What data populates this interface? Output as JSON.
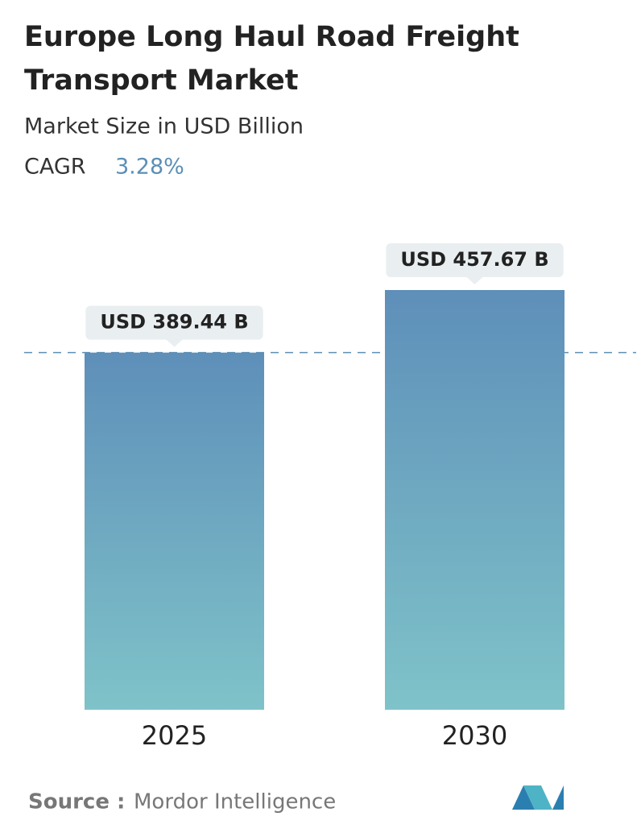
{
  "chart_data": {
    "type": "bar",
    "title": [
      "Europe Long Haul Road Freight",
      "Transport Market"
    ],
    "subtitle": "Market Size in USD Billion",
    "cagr_label": "CAGR",
    "cagr_value": "3.28%",
    "categories": [
      "2025",
      "2030"
    ],
    "values": [
      389.44,
      457.67
    ],
    "value_labels": [
      "USD 389.44 B",
      "USD 457.67 B"
    ],
    "source_label": "Source :",
    "source": "Mordor Intelligence"
  }
}
